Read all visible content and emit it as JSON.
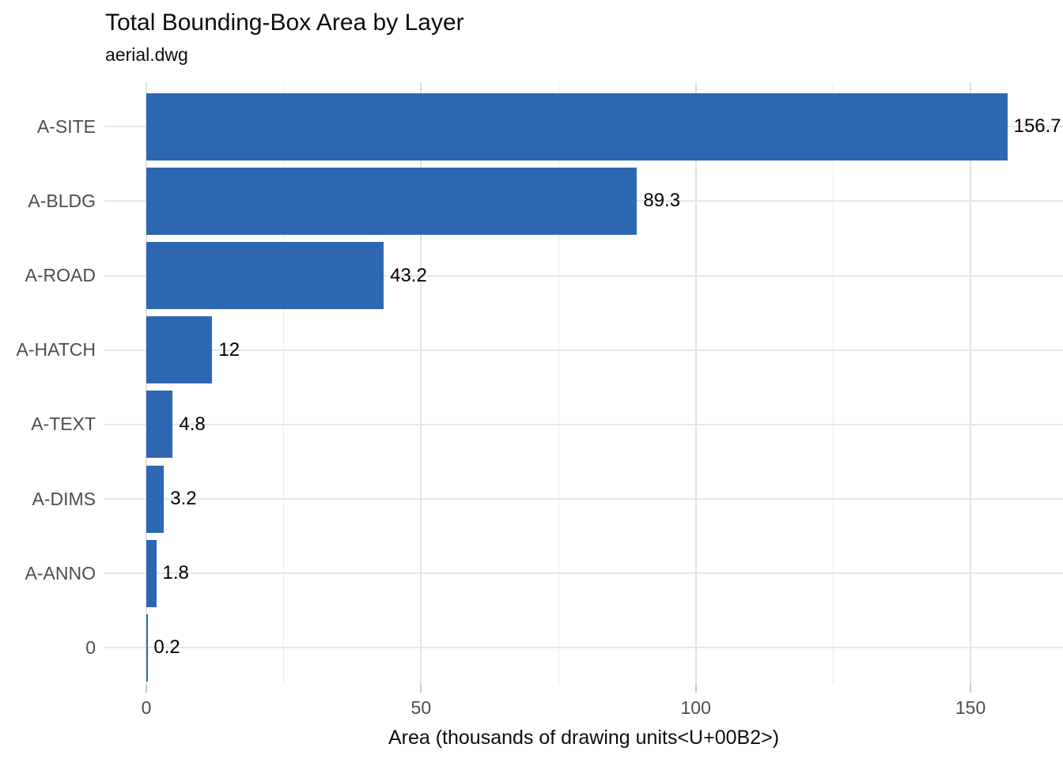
{
  "header": {
    "title": "Total Bounding-Box Area by Layer",
    "subtitle": "aerial.dwg"
  },
  "chart_data": {
    "type": "bar",
    "orientation": "horizontal",
    "title": "Total Bounding-Box Area by Layer",
    "subtitle": "aerial.dwg",
    "categories": [
      "A-SITE",
      "A-BLDG",
      "A-ROAD",
      "A-HATCH",
      "A-TEXT",
      "A-DIMS",
      "A-ANNO",
      "0"
    ],
    "values": [
      156.7,
      89.3,
      43.2,
      12,
      4.8,
      3.2,
      1.8,
      0.2
    ],
    "value_labels": [
      "156.7",
      "89.3",
      "43.2",
      "12",
      "4.8",
      "3.2",
      "1.8",
      "0.2"
    ],
    "first_value_label_clipped_at_right_edge": true,
    "xlabel": "Area (thousands of drawing units<U+00B2>)",
    "ylabel": "",
    "x_major_tick_labels": [
      "0",
      "50",
      "100",
      "150"
    ],
    "x_major_tick_values": [
      0,
      50,
      100,
      150
    ],
    "x_minor_tick_values": [
      25,
      75,
      125
    ],
    "xlim": [
      0,
      150
    ],
    "grid": true,
    "legend": "none",
    "bar_color": "#2d67b1"
  },
  "colors": {
    "background": "#ffffff",
    "bar": "#2d67b1",
    "grid_major": "#e2e2e2",
    "grid_minor": "#ececec",
    "grid_horizontal": "#e6e6e6",
    "axis_text": "#4d4d4d",
    "title_text": "#0d0d0d",
    "value_text": "#000000",
    "tick_mark": "#c9c9c9"
  }
}
